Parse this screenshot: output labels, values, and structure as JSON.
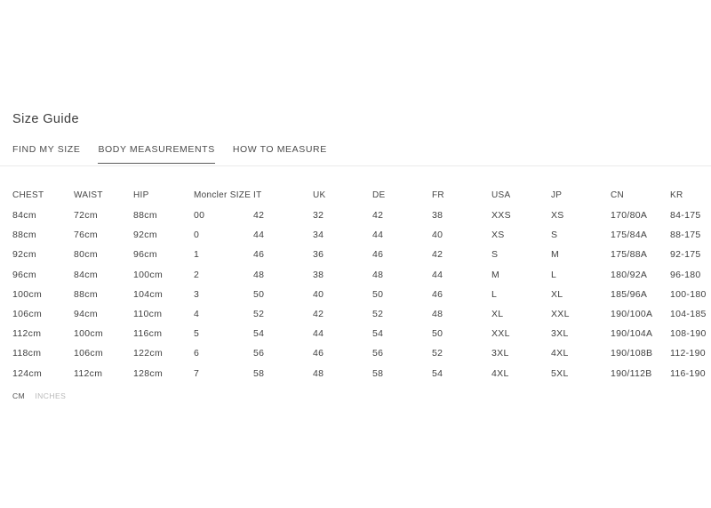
{
  "page": {
    "title": "Size Guide"
  },
  "tabs": [
    {
      "label": "FIND MY SIZE",
      "active": false
    },
    {
      "label": "BODY MEASUREMENTS",
      "active": true
    },
    {
      "label": "HOW TO MEASURE",
      "active": false
    }
  ],
  "table": {
    "columns": [
      "CHEST",
      "WAIST",
      "HIP",
      "Moncler SIZE",
      "IT",
      "UK",
      "DE",
      "FR",
      "USA",
      "JP",
      "CN",
      "KR"
    ],
    "rows": [
      [
        "84cm",
        "72cm",
        "88cm",
        "00",
        "42",
        "32",
        "42",
        "38",
        "XXS",
        "XS",
        "170/80A",
        "84-175"
      ],
      [
        "88cm",
        "76cm",
        "92cm",
        "0",
        "44",
        "34",
        "44",
        "40",
        "XS",
        "S",
        "175/84A",
        "88-175"
      ],
      [
        "92cm",
        "80cm",
        "96cm",
        "1",
        "46",
        "36",
        "46",
        "42",
        "S",
        "M",
        "175/88A",
        "92-175"
      ],
      [
        "96cm",
        "84cm",
        "100cm",
        "2",
        "48",
        "38",
        "48",
        "44",
        "M",
        "L",
        "180/92A",
        "96-180"
      ],
      [
        "100cm",
        "88cm",
        "104cm",
        "3",
        "50",
        "40",
        "50",
        "46",
        "L",
        "XL",
        "185/96A",
        "100-180"
      ],
      [
        "106cm",
        "94cm",
        "110cm",
        "4",
        "52",
        "42",
        "52",
        "48",
        "XL",
        "XXL",
        "190/100A",
        "104-185"
      ],
      [
        "112cm",
        "100cm",
        "116cm",
        "5",
        "54",
        "44",
        "54",
        "50",
        "XXL",
        "3XL",
        "190/104A",
        "108-190"
      ],
      [
        "118cm",
        "106cm",
        "122cm",
        "6",
        "56",
        "46",
        "56",
        "52",
        "3XL",
        "4XL",
        "190/108B",
        "112-190"
      ],
      [
        "124cm",
        "112cm",
        "128cm",
        "7",
        "58",
        "48",
        "58",
        "54",
        "4XL",
        "5XL",
        "190/112B",
        "116-190"
      ]
    ]
  },
  "units": {
    "options": [
      {
        "label": "CM",
        "active": true
      },
      {
        "label": "INCHES",
        "active": false
      }
    ]
  },
  "colors": {
    "text": "#3f3f3f",
    "muted_text": "#b8b8b8",
    "divider": "#eaeaea",
    "active_tab_underline": "#5c5c5c",
    "background": "#ffffff"
  }
}
